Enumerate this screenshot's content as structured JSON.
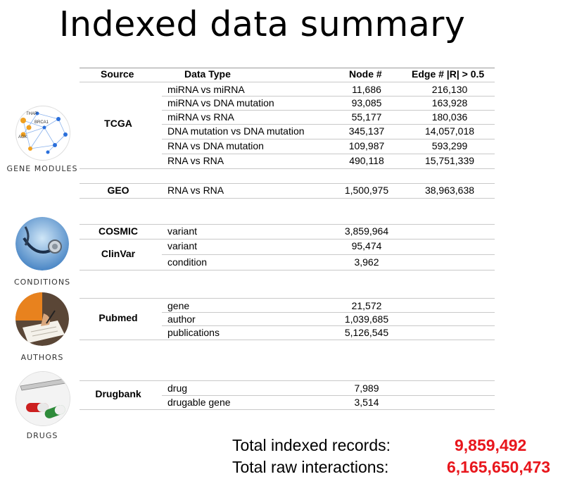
{
  "title": "Indexed data summary",
  "headers": {
    "source": "Source",
    "data_type": "Data Type",
    "node": "Node #",
    "edge": "Edge # |R| > 0.5"
  },
  "sources": {
    "tcga": "TCGA",
    "geo": "GEO",
    "cosmic": "COSMIC",
    "clinvar": "ClinVar",
    "pubmed": "Pubmed",
    "drugbank": "Drugbank"
  },
  "rows": [
    {
      "type": "miRNA vs miRNA",
      "node": "11,686",
      "edge": "216,130"
    },
    {
      "type": "miRNA vs DNA mutation",
      "node": "93,085",
      "edge": "163,928"
    },
    {
      "type": "miRNA vs RNA",
      "node": "55,177",
      "edge": "180,036"
    },
    {
      "type": "DNA mutation vs DNA mutation",
      "node": "345,137",
      "edge": "14,057,018"
    },
    {
      "type": "RNA vs DNA mutation",
      "node": "109,987",
      "edge": "593,299"
    },
    {
      "type": "RNA vs RNA",
      "node": "490,118",
      "edge": "15,751,339"
    },
    {
      "type": "RNA vs RNA",
      "node": "1,500,975",
      "edge": "38,963,638"
    },
    {
      "type": "variant",
      "node": "3,859,964",
      "edge": ""
    },
    {
      "type": "variant",
      "node": "95,474",
      "edge": ""
    },
    {
      "type": "condition",
      "node": "3,962",
      "edge": ""
    },
    {
      "type": "gene",
      "node": "21,572",
      "edge": ""
    },
    {
      "type": "author",
      "node": "1,039,685",
      "edge": ""
    },
    {
      "type": "publications",
      "node": "5,126,545",
      "edge": ""
    },
    {
      "type": "drug",
      "node": "7,989",
      "edge": ""
    },
    {
      "type": "drugable gene",
      "node": "3,514",
      "edge": ""
    }
  ],
  "icons": {
    "gene_modules": {
      "label": "GENE MODULES",
      "node_labels": [
        "THAP",
        "BRCA1",
        "AGK"
      ]
    },
    "conditions": {
      "label": "CONDITIONS"
    },
    "authors": {
      "label": "AUTHORS"
    },
    "drugs": {
      "label": "DRUGS"
    }
  },
  "totals": {
    "records_label": "Total indexed records:",
    "records_value": "9,859,492",
    "interactions_label": "Total raw interactions:",
    "interactions_value": "6,165,650,473"
  },
  "colors": {
    "accent_red": "#e8161c",
    "network_blue": "#2a6fdb",
    "network_orange": "#f0a020"
  }
}
